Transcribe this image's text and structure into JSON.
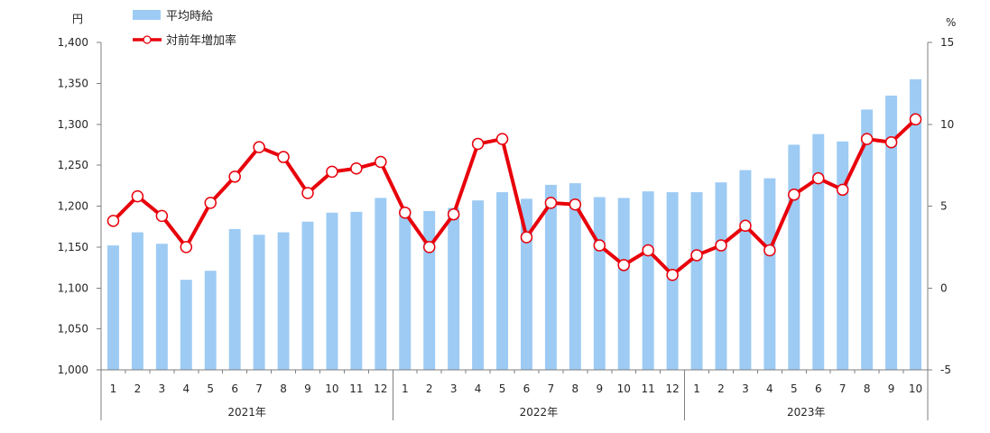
{
  "chart_data": {
    "type": "bar",
    "title": "",
    "groups": [
      {
        "label": "2021年",
        "categories": [
          "1",
          "2",
          "3",
          "4",
          "5",
          "6",
          "7",
          "8",
          "9",
          "10",
          "11",
          "12"
        ]
      },
      {
        "label": "2022年",
        "categories": [
          "1",
          "2",
          "3",
          "4",
          "5",
          "6",
          "7",
          "8",
          "9",
          "10",
          "11",
          "12"
        ]
      },
      {
        "label": "2023年",
        "categories": [
          "1",
          "2",
          "3",
          "4",
          "5",
          "6",
          "7",
          "8",
          "9",
          "10"
        ]
      }
    ],
    "y_left": {
      "unit": "円",
      "ylim": [
        1000,
        1400
      ],
      "ticks": [
        1000,
        1050,
        1100,
        1150,
        1200,
        1250,
        1300,
        1350,
        1400
      ],
      "tick_labels": [
        "1,000",
        "1,050",
        "1,100",
        "1,150",
        "1,200",
        "1,250",
        "1,300",
        "1,350",
        "1,400"
      ]
    },
    "y_right": {
      "unit": "%",
      "ylim": [
        -5,
        15
      ],
      "ticks": [
        -5,
        0,
        5,
        10,
        15
      ],
      "tick_labels": [
        "-5",
        "0",
        "5",
        "10",
        "15"
      ]
    },
    "series": [
      {
        "name": "平均時給",
        "type": "bar",
        "axis": "left",
        "color": "#9dcbf4",
        "values": [
          1152,
          1168,
          1154,
          1110,
          1121,
          1172,
          1165,
          1168,
          1181,
          1192,
          1193,
          1210,
          1197,
          1194,
          1198,
          1207,
          1217,
          1209,
          1226,
          1228,
          1211,
          1210,
          1218,
          1217,
          1217,
          1229,
          1244,
          1234,
          1275,
          1288,
          1279,
          1318,
          1335,
          1355
        ]
      },
      {
        "name": "対前年増加率",
        "type": "line",
        "axis": "right",
        "color": "#e8000b",
        "marker": "circle",
        "marker_fill": "#ffffff",
        "values": [
          4.1,
          5.6,
          4.4,
          2.5,
          5.2,
          6.8,
          8.6,
          8.0,
          5.8,
          7.1,
          7.3,
          7.7,
          4.6,
          2.5,
          4.5,
          8.8,
          9.1,
          3.1,
          5.2,
          5.1,
          2.6,
          1.4,
          2.3,
          0.8,
          2.0,
          2.6,
          3.8,
          2.3,
          5.7,
          6.7,
          6.0,
          9.1,
          8.9,
          10.3
        ]
      }
    ],
    "legend": "top-left",
    "grid": false
  }
}
